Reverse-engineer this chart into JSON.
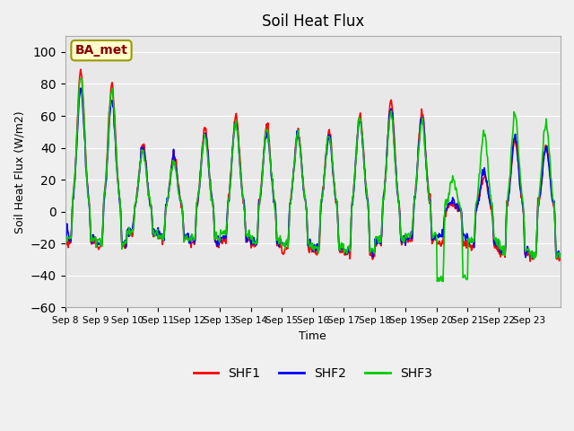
{
  "title": "Soil Heat Flux",
  "ylabel": "Soil Heat Flux (W/m2)",
  "xlabel": "Time",
  "ylim": [
    -60,
    110
  ],
  "yticks": [
    -60,
    -40,
    -20,
    0,
    20,
    40,
    60,
    80,
    100
  ],
  "xtick_labels": [
    "Sep 8",
    "Sep 9",
    "Sep 10",
    "Sep 11",
    "Sep 12",
    "Sep 13",
    "Sep 14",
    "Sep 15",
    "Sep 16",
    "Sep 17",
    "Sep 18",
    "Sep 19",
    "Sep 20",
    "Sep 21",
    "Sep 22",
    "Sep 23"
  ],
  "shf1_color": "#ff0000",
  "shf2_color": "#0000ff",
  "shf3_color": "#00cc00",
  "linewidth": 1.2,
  "plot_bg_color": "#e8e8e8",
  "fig_bg_color": "#f0f0f0",
  "label_box_text": "BA_met",
  "label_box_facecolor": "#ffffcc",
  "label_box_edgecolor": "#999900",
  "label_box_textcolor": "#880000",
  "n_days": 16,
  "n_per_day": 48,
  "day_peaks_shf1": [
    88,
    80,
    42,
    35,
    52,
    60,
    53,
    51,
    50,
    61,
    70,
    63,
    5,
    22,
    45,
    42
  ],
  "day_peaks_shf2": [
    78,
    70,
    40,
    33,
    49,
    57,
    50,
    48,
    47,
    58,
    65,
    60,
    8,
    25,
    47,
    40
  ],
  "day_peaks_shf3": [
    85,
    75,
    38,
    31,
    47,
    55,
    52,
    49,
    48,
    59,
    62,
    58,
    20,
    50,
    62,
    56
  ],
  "night_vals_shf1": [
    -19,
    -22,
    -14,
    -17,
    -20,
    -18,
    -21,
    -23,
    -25,
    -27,
    -20,
    -18,
    -20,
    -22,
    -27,
    -28
  ],
  "night_vals_shf2": [
    -17,
    -20,
    -12,
    -15,
    -18,
    -16,
    -19,
    -21,
    -23,
    -25,
    -18,
    -16,
    -15,
    -20,
    -25,
    -26
  ],
  "night_vals_shf3": [
    -16,
    -19,
    -13,
    -16,
    -17,
    -15,
    -18,
    -20,
    -22,
    -24,
    -17,
    -15,
    -42,
    -18,
    -24,
    -27
  ]
}
